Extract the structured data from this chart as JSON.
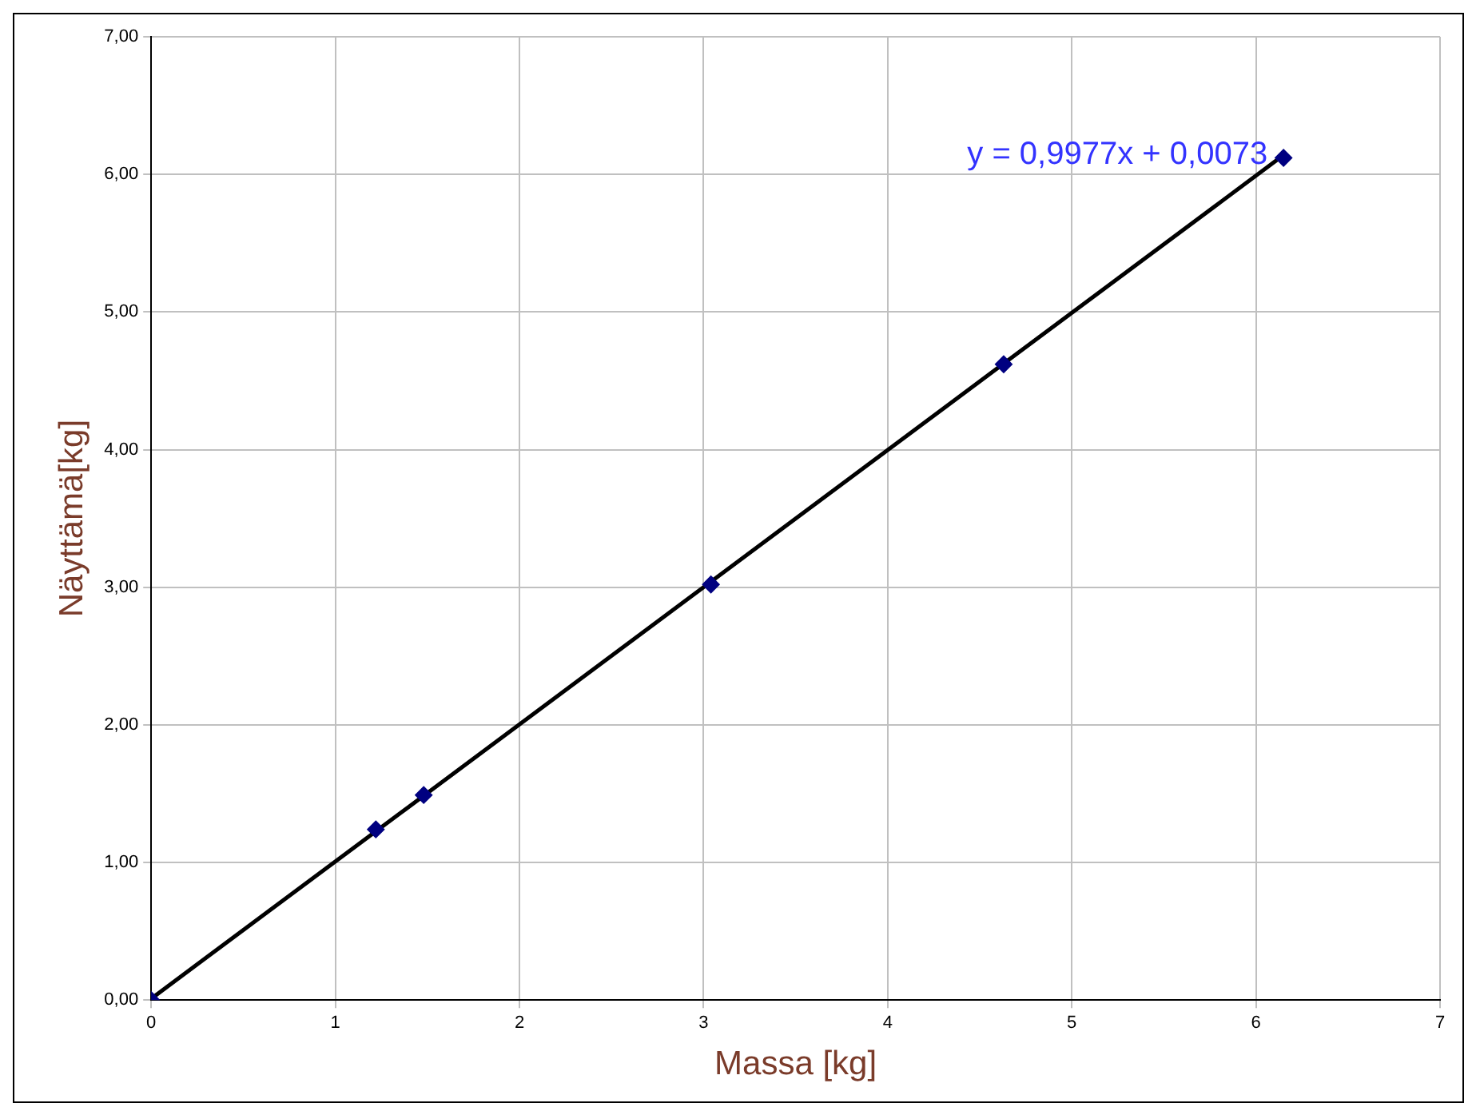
{
  "chart_data": {
    "type": "scatter",
    "xlabel": "Massa [kg]",
    "ylabel": "Näyttämä[kg]",
    "series": [
      {
        "color": "#000080",
        "x": [
          0,
          1.22,
          1.48,
          3.04,
          4.63,
          6.15
        ],
        "values": [
          0,
          1.24,
          1.49,
          3.02,
          4.62,
          6.12
        ]
      },
      {
        "type": "line",
        "color": "#000000",
        "marker": "none",
        "x": [
          0,
          6.15
        ],
        "values": [
          0.01,
          6.14
        ]
      }
    ],
    "xlim": [
      0,
      7
    ],
    "xticks": [
      0,
      1,
      2,
      3,
      4,
      5,
      6,
      7
    ],
    "ylim": [
      0,
      7
    ],
    "yticks": [
      {
        "value": 0,
        "label": "0,00"
      },
      {
        "value": 1,
        "label": "1,00"
      },
      {
        "value": 2,
        "label": "2,00"
      },
      {
        "value": 3,
        "label": "3,00"
      },
      {
        "value": 4,
        "label": "4,00"
      },
      {
        "value": 5,
        "label": "5,00"
      },
      {
        "value": 6,
        "label": "6,00"
      },
      {
        "value": 7,
        "label": "7,00"
      }
    ],
    "grid": true,
    "legend": false,
    "marker": "diamond",
    "line_style": "solid",
    "annotations": [
      {
        "text": "y = 0,9977x + 0,0073",
        "x": 6.15,
        "y": 6.14
      }
    ]
  }
}
